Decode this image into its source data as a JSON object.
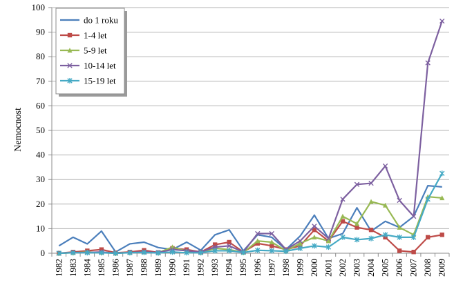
{
  "chart_data": {
    "type": "line",
    "title": "",
    "xlabel": "",
    "ylabel": "Nemocnost",
    "ylim": [
      0,
      100
    ],
    "yticks": [
      "0",
      "10",
      "20",
      "30",
      "40",
      "50",
      "60",
      "70",
      "80",
      "90",
      "100"
    ],
    "grid": true,
    "legend_position": "top-left",
    "categories": [
      "1982",
      "1983",
      "1984",
      "1985",
      "1986",
      "1987",
      "1988",
      "1989",
      "1990",
      "1991",
      "1992",
      "1993",
      "1994",
      "1995",
      "1996",
      "1997",
      "1998",
      "1999",
      "2000",
      "2001",
      "2002",
      "2003",
      "2004",
      "2005",
      "2006",
      "2007",
      "2008",
      "2009"
    ],
    "series": [
      {
        "name": "do 1 roku",
        "color": "#4a7ebb",
        "marker": "none",
        "values": [
          3.0,
          6.5,
          3.8,
          9.0,
          0.5,
          3.8,
          4.5,
          2.3,
          1.5,
          4.5,
          1.2,
          7.5,
          9.5,
          1.0,
          7.5,
          6.5,
          1.5,
          7.0,
          15.5,
          6.0,
          8.0,
          18.5,
          9.0,
          13.0,
          10.5,
          15.0,
          27.5,
          27.0
        ]
      },
      {
        "name": "1-4 let",
        "color": "#be4b48",
        "marker": "square",
        "values": [
          0.0,
          0.5,
          1.0,
          1.5,
          0.2,
          0.5,
          1.2,
          0.3,
          2.0,
          1.5,
          0.5,
          3.5,
          4.5,
          0.5,
          4.0,
          3.0,
          1.5,
          3.0,
          9.5,
          5.0,
          13.0,
          10.5,
          9.5,
          6.5,
          1.0,
          0.5,
          6.5,
          7.5
        ]
      },
      {
        "name": "5-9 let",
        "color": "#98b954",
        "marker": "triangle",
        "values": [
          0.0,
          0.2,
          0.5,
          0.3,
          0.0,
          0.3,
          0.5,
          0.2,
          2.5,
          0.8,
          0.3,
          2.0,
          1.5,
          0.3,
          5.0,
          4.5,
          1.0,
          4.0,
          6.5,
          5.0,
          15.0,
          12.0,
          21.0,
          19.5,
          10.5,
          7.5,
          23.0,
          22.5
        ]
      },
      {
        "name": "10-14 let",
        "color": "#7d60a0",
        "marker": "x",
        "values": [
          0.0,
          0.3,
          0.3,
          0.5,
          0.0,
          0.3,
          0.5,
          0.3,
          1.5,
          1.0,
          0.5,
          2.5,
          3.0,
          0.5,
          8.0,
          8.0,
          1.5,
          5.0,
          11.0,
          6.0,
          22.0,
          28.0,
          28.5,
          35.5,
          21.5,
          15.0,
          77.5,
          94.5
        ]
      },
      {
        "name": "15-19 let",
        "color": "#46aac5",
        "marker": "star",
        "values": [
          0.0,
          0.2,
          0.2,
          0.2,
          0.0,
          0.2,
          0.3,
          0.1,
          0.5,
          0.2,
          0.2,
          1.0,
          1.0,
          0.3,
          1.2,
          1.0,
          0.8,
          2.0,
          3.0,
          2.5,
          6.5,
          5.5,
          6.0,
          7.5,
          6.5,
          6.5,
          22.0,
          32.5
        ]
      }
    ]
  }
}
